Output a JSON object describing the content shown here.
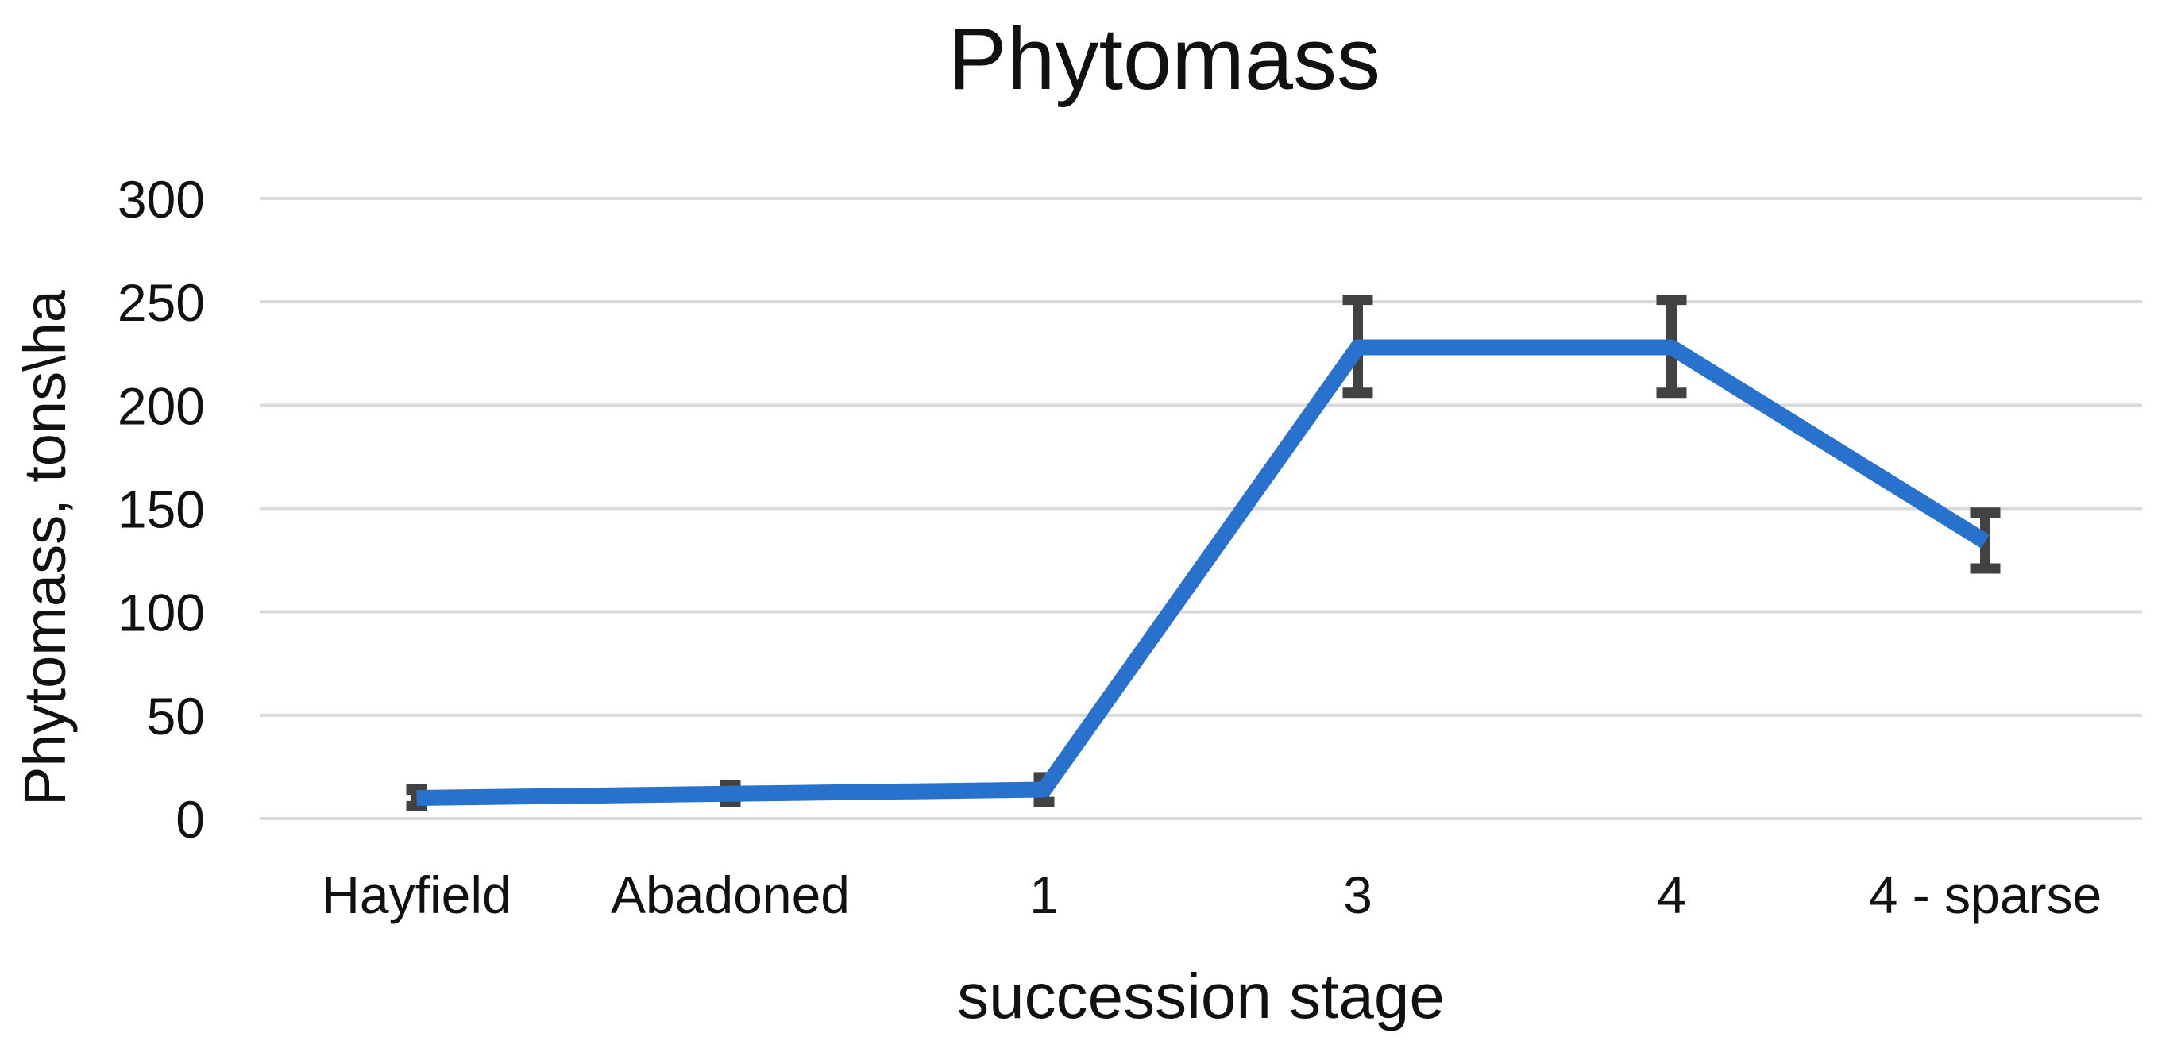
{
  "chart_data": {
    "type": "line",
    "title": "Phytomass",
    "ylabel": "Phytomass, tons\\ha",
    "xlabel": "succession stage",
    "categories": [
      "Hayfield",
      "Abadoned",
      "1",
      "3",
      "4",
      "4 - sparse"
    ],
    "series": [
      {
        "name": "Phytomass",
        "values": [
          10,
          12,
          14,
          228,
          228,
          134
        ],
        "error_plus": [
          4,
          4,
          6,
          23,
          23,
          14
        ],
        "error_minus": [
          4,
          4,
          6,
          22,
          22,
          13
        ]
      }
    ],
    "ylim": [
      0,
      300
    ],
    "yticks": [
      0,
      50,
      100,
      150,
      200,
      250,
      300
    ],
    "grid": true,
    "legend_position": "none"
  },
  "colors": {
    "line": "#2871CC",
    "error_bar": "#424242",
    "gridline": "#D9D9D9",
    "text": "#111111",
    "background": "#FFFFFF"
  }
}
